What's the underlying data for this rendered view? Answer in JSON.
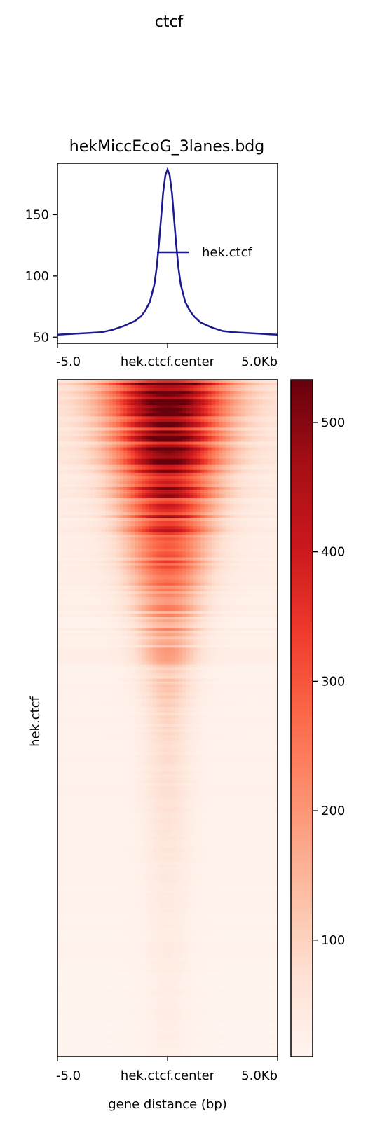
{
  "chart_data": [
    {
      "type": "line",
      "suptitle": "ctcf",
      "title": "hekMiccEcoG_3lanes.bdg",
      "xlabel": "",
      "ylabel": "",
      "x_tick_labels": [
        "-5.0",
        "hek.ctcf.center",
        "5.0Kb"
      ],
      "xlim": [
        -5000,
        5000
      ],
      "ylim": [
        45,
        192
      ],
      "y_ticks": [
        50,
        100,
        150
      ],
      "legend_loc": "right",
      "series": [
        {
          "name": "hek.ctcf",
          "color": "#1a1a8c",
          "x": [
            -5000,
            -4000,
            -3000,
            -2500,
            -2000,
            -1500,
            -1200,
            -1000,
            -800,
            -600,
            -500,
            -400,
            -300,
            -200,
            -100,
            0,
            100,
            200,
            300,
            400,
            500,
            600,
            800,
            1000,
            1200,
            1500,
            2000,
            2500,
            3000,
            4000,
            5000
          ],
          "y": [
            52,
            53,
            54,
            56,
            59,
            63,
            67,
            72,
            79,
            93,
            106,
            124,
            146,
            168,
            182,
            187,
            182,
            168,
            146,
            124,
            106,
            93,
            79,
            72,
            67,
            62,
            58,
            55,
            54,
            53,
            52
          ]
        }
      ]
    },
    {
      "type": "heatmap",
      "ylabel": "hek.ctcf",
      "xlabel": "gene distance (bp)",
      "x_tick_labels": [
        "-5.0",
        "hek.ctcf.center",
        "5.0Kb"
      ],
      "colormap": "Reds",
      "colorbar": {
        "range": [
          10,
          533
        ],
        "ticks": [
          100,
          200,
          300,
          400,
          500
        ]
      },
      "center_profile_by_row_fraction": [
        {
          "row": 0.0,
          "center": 520,
          "flank": 60
        },
        {
          "row": 0.1,
          "center": 460,
          "flank": 45
        },
        {
          "row": 0.2,
          "center": 380,
          "flank": 35
        },
        {
          "row": 0.3,
          "center": 230,
          "flank": 28
        },
        {
          "row": 0.5,
          "center": 90,
          "flank": 22
        },
        {
          "row": 0.75,
          "center": 45,
          "flank": 18
        },
        {
          "row": 1.0,
          "center": 30,
          "flank": 14
        }
      ]
    }
  ]
}
